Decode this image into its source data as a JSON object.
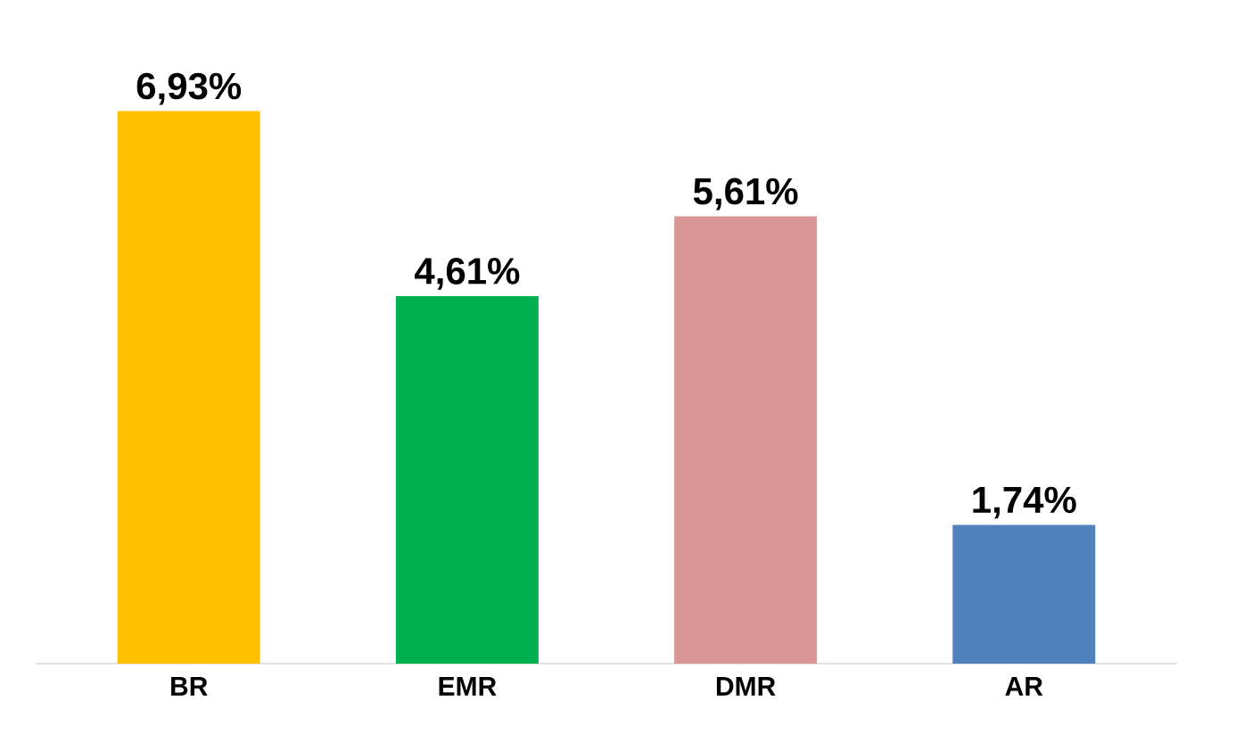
{
  "chart_data": {
    "type": "bar",
    "categories": [
      "BR",
      "EMR",
      "DMR",
      "AR"
    ],
    "values": [
      6.93,
      4.61,
      5.61,
      1.74
    ],
    "colors": [
      "#ffc000",
      "#00b050",
      "#d99694",
      "#4f81bd"
    ],
    "value_labels": [
      "6,93%",
      "4,61%",
      "5,61%",
      "1,74%"
    ]
  }
}
